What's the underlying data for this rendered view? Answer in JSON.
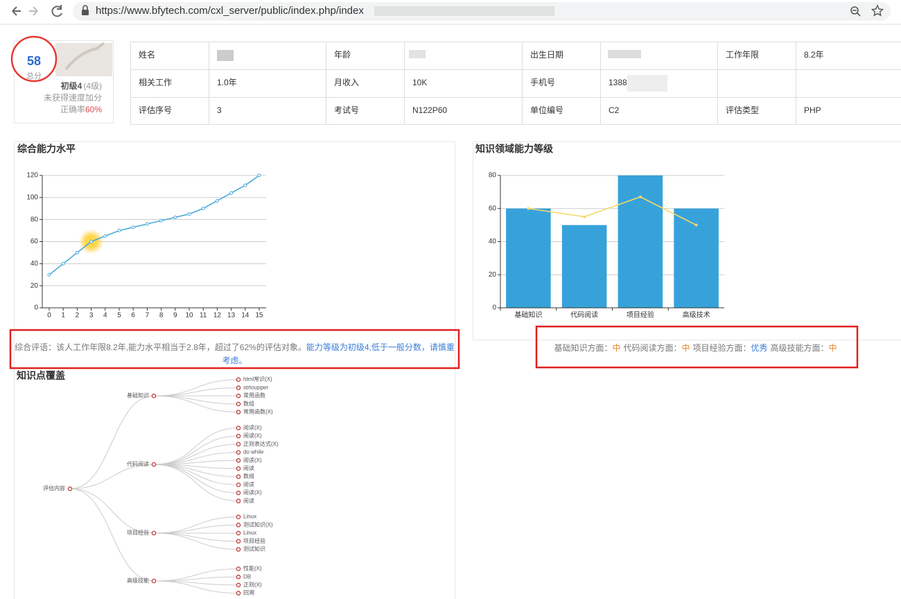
{
  "browser": {
    "url": "https://www.bfytech.com/cxl_server/public/index.php/index"
  },
  "score": {
    "value": "58",
    "label": "总分",
    "level": "初级4",
    "level_sub": "(4级)",
    "speed": "未获得速度加分",
    "accuracy_label": "正确率",
    "accuracy": "60%"
  },
  "info": {
    "rows": [
      [
        {
          "label": "姓名"
        },
        {
          "label": "年龄"
        },
        {
          "label": "出生日期"
        },
        {
          "label": "工作年限",
          "value": "8.2年"
        }
      ],
      [
        {
          "label": "相关工作",
          "value": "1.0年"
        },
        {
          "label": "月收入",
          "value": "10K"
        },
        {
          "label": "手机号",
          "value": "1388"
        },
        {}
      ],
      [
        {
          "label": "评估序号",
          "value": "3"
        },
        {
          "label": "考试号",
          "value": "N122P60"
        },
        {
          "label": "单位编号",
          "value": "C2"
        },
        {
          "label": "评估类型",
          "value": "PHP"
        }
      ]
    ]
  },
  "chart_data": [
    {
      "type": "line",
      "title": "综合能力水平",
      "x": [
        0,
        1,
        2,
        3,
        4,
        5,
        6,
        7,
        8,
        9,
        10,
        11,
        12,
        13,
        14,
        15
      ],
      "values": [
        30,
        40,
        50,
        60,
        65,
        70,
        73,
        76,
        79,
        82,
        85,
        90,
        97,
        104,
        111,
        120
      ],
      "color": "#4ba9d9",
      "highlight": 3,
      "xlim": [
        0,
        15
      ],
      "xticks": [
        0,
        1,
        2,
        3,
        4,
        5,
        6,
        7,
        8,
        9,
        10,
        11,
        12,
        13,
        14,
        15
      ],
      "ylim": [
        0,
        120
      ],
      "yticks": [
        0,
        20,
        40,
        60,
        80,
        100,
        120
      ],
      "grid": true
    },
    {
      "type": "bar",
      "title": "知识领域能力等级",
      "categories": [
        "基础知识",
        "代码阅读",
        "项目经验",
        "高级技术"
      ],
      "series": [
        {
          "kind": "bar",
          "color": "#37a2da",
          "values": [
            60,
            50,
            80,
            60
          ]
        },
        {
          "kind": "line",
          "color": "#f6d86b",
          "values": [
            60,
            55,
            67,
            50
          ]
        }
      ],
      "ylim": [
        0,
        80
      ],
      "yticks": [
        0,
        20,
        40,
        60,
        80
      ],
      "grid": true
    }
  ],
  "comment": {
    "text": "综合评语：该人工作年限8.2年,能力水平相当于2.8年，超过了62%的评估对象。",
    "highlight": "能力等级为初级4,低于一般分数，请慎重考虑。"
  },
  "summary": [
    {
      "label": "基础知识方面：",
      "grade": "中",
      "color": "#e8852b"
    },
    {
      "label": "代码阅读方面：",
      "grade": "中",
      "color": "#e8852b"
    },
    {
      "label": "项目经验方面：",
      "grade": "优秀",
      "color": "#3b7dd8"
    },
    {
      "label": "高级技能方面：",
      "grade": "中",
      "color": "#e8852b"
    }
  ],
  "tree": {
    "title": "知识点覆盖",
    "label": "评估内容",
    "children": [
      {
        "label": "基础知识",
        "children": [
          "html常识(X)",
          "strtoupper",
          "常用函数",
          "数组",
          "常用函数(X)"
        ]
      },
      {
        "label": "代码阅读",
        "children": [
          "阅读(X)",
          "阅读(X)",
          "正则表达式(X)",
          "do while",
          "阅读(X)",
          "阅读",
          "数组",
          "阅读",
          "阅读(X)",
          "阅读"
        ]
      },
      {
        "label": "项目经验",
        "children": [
          "Linux",
          "测试知识(X)",
          "Linux",
          "项目经验",
          "测试知识"
        ]
      },
      {
        "label": "高级技能",
        "children": [
          "性能(X)",
          "DB",
          "正则(X)",
          "回溯"
        ]
      }
    ]
  }
}
